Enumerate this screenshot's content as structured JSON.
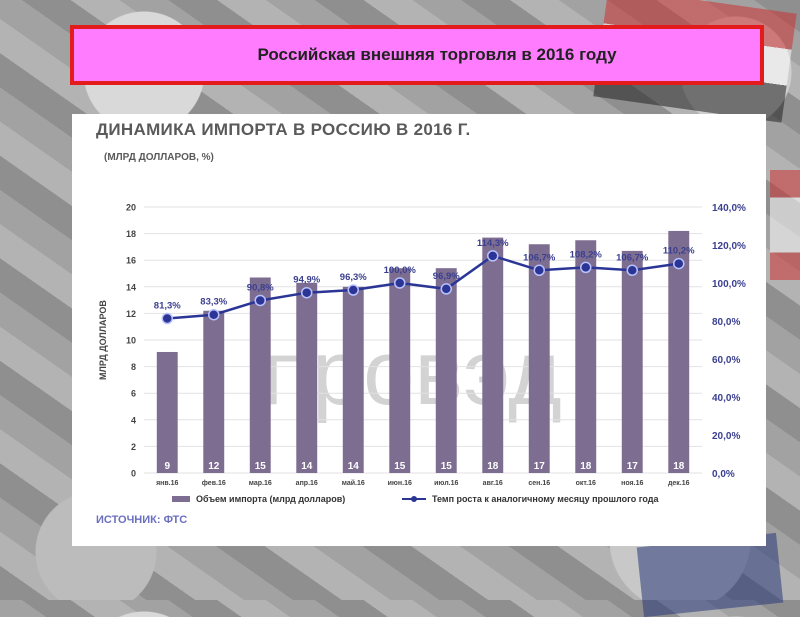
{
  "banner": {
    "title": "Российская внешняя торговля в 2016 году"
  },
  "chart_data": {
    "type": "bar",
    "title": "ДИНАМИКА ИМПОРТА В РОССИЮ В 2016 Г.",
    "subtitle": "(МЛРД ДОЛЛАРОВ, %)",
    "ylabel": "МЛРД ДОЛЛАРОВ",
    "ylim": [
      0,
      20
    ],
    "yticks": [
      0,
      2,
      4,
      6,
      8,
      10,
      12,
      14,
      16,
      18,
      20
    ],
    "y2lim": [
      0,
      140
    ],
    "y2ticks": [
      "0,0%",
      "20,0%",
      "40,0%",
      "60,0%",
      "80,0%",
      "100,0%",
      "120,0%",
      "140,0%"
    ],
    "categories": [
      "янв.16",
      "фев.16",
      "мар.16",
      "апр.16",
      "май.16",
      "июн.16",
      "июл.16",
      "авг.16",
      "сен.16",
      "окт.16",
      "ноя.16",
      "дек.16"
    ],
    "series": [
      {
        "name": "Объем импорта (млрд долларов)",
        "type": "bar",
        "axis": "left",
        "color": "#7d6e91",
        "values": [
          9.1,
          12.2,
          14.7,
          14.3,
          14.0,
          15.4,
          15.4,
          17.7,
          17.2,
          17.5,
          16.7,
          18.2
        ],
        "labels": [
          "9",
          "12",
          "15",
          "14",
          "14",
          "15",
          "15",
          "18",
          "17",
          "18",
          "17",
          "18"
        ]
      },
      {
        "name": "Темп роста к аналогичному месяцу прошлого года",
        "type": "line",
        "axis": "right",
        "color": "#2b3595",
        "values": [
          81.3,
          83.3,
          90.8,
          94.9,
          96.3,
          100.0,
          96.9,
          114.3,
          106.7,
          108.2,
          106.7,
          110.2
        ],
        "labels": [
          "81,3%",
          "83,3%",
          "90,8%",
          "94,9%",
          "96,3%",
          "100,0%",
          "96,9%",
          "114,3%",
          "106,7%",
          "108,2%",
          "106,7%",
          "110,2%"
        ]
      }
    ],
    "legend": "bottom",
    "grid": true,
    "watermark": "провэд",
    "source": "ИСТОЧНИК: ФТС"
  }
}
